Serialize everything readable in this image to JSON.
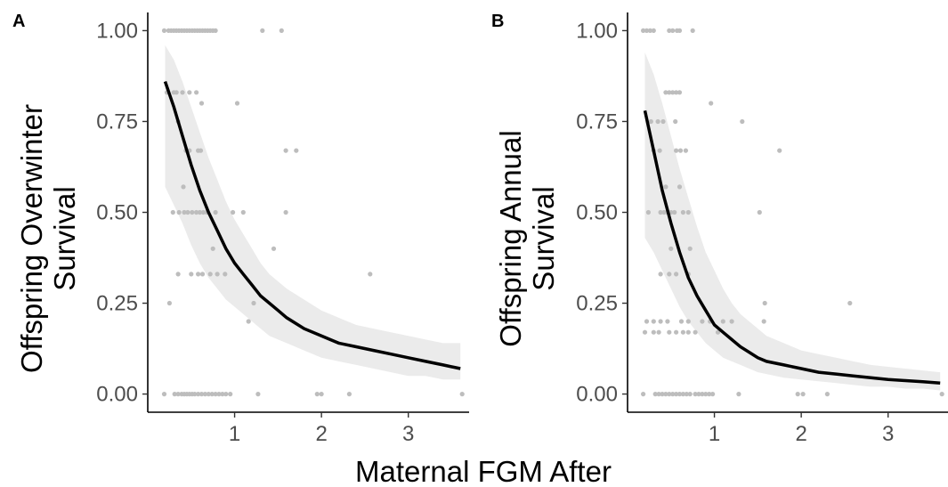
{
  "chart_data": [
    {
      "panel_label": "A",
      "type": "scatter",
      "xlabel": "Maternal FGM After",
      "ylabel_lines": [
        "Offspring Overwinter",
        "Survival"
      ],
      "xlim": [
        0,
        3.7
      ],
      "ylim": [
        -0.05,
        1.05
      ],
      "x_ticks": [
        "1",
        "2",
        "3"
      ],
      "y_ticks": [
        "0.00",
        "0.25",
        "0.50",
        "0.75",
        "1.00"
      ],
      "grid": false,
      "points": {
        "x": [
          0.19,
          0.24,
          0.27,
          0.3,
          0.33,
          0.36,
          0.39,
          0.42,
          0.45,
          0.48,
          0.51,
          0.54,
          0.57,
          0.6,
          0.63,
          0.66,
          0.69,
          0.72,
          0.75,
          0.78,
          1.32,
          1.54,
          0.19,
          0.31,
          0.35,
          0.39,
          0.42,
          0.45,
          0.48,
          0.51,
          0.54,
          0.58,
          0.62,
          0.66,
          0.7,
          0.74,
          0.78,
          0.82,
          0.86,
          0.9,
          0.95,
          1.27,
          1.95,
          2.0,
          2.32,
          3.62,
          0.22,
          0.3,
          0.33,
          0.4,
          0.48,
          0.56,
          0.62,
          1.03,
          0.35,
          0.44,
          0.48,
          0.58,
          0.61,
          1.59,
          1.71,
          0.29,
          0.36,
          0.42,
          0.46,
          0.51,
          0.56,
          0.6,
          0.64,
          0.68,
          0.78,
          0.98,
          1.1,
          1.59,
          0.25,
          0.35,
          0.5,
          0.58,
          0.63,
          0.72,
          0.8,
          0.89,
          1.16,
          1.22,
          0.41,
          0.75,
          1.45,
          2.56
        ],
        "y": [
          1,
          1,
          1,
          1,
          1,
          1,
          1,
          1,
          1,
          1,
          1,
          1,
          1,
          1,
          1,
          1,
          1,
          1,
          1,
          1,
          1,
          1,
          0,
          0,
          0,
          0,
          0,
          0,
          0,
          0,
          0,
          0,
          0,
          0,
          0,
          0,
          0,
          0,
          0,
          0,
          0,
          0,
          0,
          0,
          0,
          0,
          0.83,
          0.83,
          0.83,
          0.83,
          0.83,
          0.83,
          0.8,
          0.8,
          0.75,
          0.67,
          0.67,
          0.67,
          0.67,
          0.67,
          0.67,
          0.5,
          0.5,
          0.5,
          0.5,
          0.5,
          0.5,
          0.5,
          0.5,
          0.5,
          0.5,
          0.5,
          0.5,
          0.5,
          0.25,
          0.33,
          0.33,
          0.33,
          0.33,
          0.33,
          0.33,
          0.33,
          0.2,
          0.25,
          0.57,
          0.4,
          0.4,
          0.33
        ]
      },
      "fit": {
        "x": [
          0.2,
          0.3,
          0.4,
          0.5,
          0.6,
          0.7,
          0.8,
          0.9,
          1.0,
          1.1,
          1.2,
          1.3,
          1.4,
          1.5,
          1.6,
          1.8,
          2.0,
          2.2,
          2.4,
          2.6,
          2.8,
          3.0,
          3.2,
          3.4,
          3.6
        ],
        "y": [
          0.86,
          0.79,
          0.71,
          0.63,
          0.56,
          0.5,
          0.45,
          0.4,
          0.36,
          0.33,
          0.3,
          0.27,
          0.25,
          0.23,
          0.21,
          0.18,
          0.16,
          0.14,
          0.13,
          0.12,
          0.11,
          0.1,
          0.09,
          0.08,
          0.07
        ],
        "lower": [
          0.57,
          0.52,
          0.47,
          0.41,
          0.36,
          0.32,
          0.29,
          0.26,
          0.24,
          0.22,
          0.2,
          0.18,
          0.16,
          0.15,
          0.14,
          0.12,
          0.1,
          0.09,
          0.08,
          0.07,
          0.06,
          0.05,
          0.05,
          0.04,
          0.04
        ],
        "upper": [
          0.96,
          0.92,
          0.86,
          0.79,
          0.72,
          0.65,
          0.59,
          0.53,
          0.48,
          0.44,
          0.4,
          0.36,
          0.33,
          0.31,
          0.29,
          0.26,
          0.23,
          0.21,
          0.19,
          0.18,
          0.17,
          0.16,
          0.15,
          0.14,
          0.14
        ]
      }
    },
    {
      "panel_label": "B",
      "type": "scatter",
      "xlabel": "Maternal FGM After",
      "ylabel_lines": [
        "Offspring Annual",
        "Survival"
      ],
      "xlim": [
        0,
        3.7
      ],
      "ylim": [
        -0.05,
        1.05
      ],
      "x_ticks": [
        "1",
        "2",
        "3"
      ],
      "y_ticks": [
        "0.00",
        "0.25",
        "0.50",
        "0.75",
        "1.00"
      ],
      "grid": false,
      "points": {
        "x": [
          0.18,
          0.22,
          0.26,
          0.3,
          0.48,
          0.52,
          0.57,
          0.6,
          0.75,
          0.18,
          0.32,
          0.36,
          0.4,
          0.44,
          0.48,
          0.52,
          0.56,
          0.6,
          0.64,
          0.68,
          0.72,
          0.78,
          0.82,
          0.86,
          0.9,
          0.94,
          0.98,
          1.28,
          1.96,
          2.02,
          2.3,
          3.62,
          0.44,
          0.48,
          0.52,
          0.56,
          0.6,
          0.96,
          0.27,
          0.35,
          0.41,
          0.55,
          1.32,
          0.3,
          0.37,
          0.56,
          0.61,
          0.67,
          1.75,
          0.24,
          0.38,
          0.42,
          0.46,
          0.5,
          0.54,
          0.64,
          0.7,
          1.52,
          0.38,
          0.48,
          0.56,
          0.7,
          1.58,
          2.56,
          0.22,
          0.3,
          0.38,
          0.46,
          0.62,
          0.7,
          0.86,
          0.95,
          1.1,
          1.2,
          1.57,
          0.2,
          0.3,
          0.36,
          0.48,
          0.56,
          0.64,
          0.7,
          0.78,
          0.44,
          0.6,
          0.5,
          0.72,
          1.04
        ],
        "y": [
          1,
          1,
          1,
          1,
          1,
          1,
          1,
          1,
          1,
          0,
          0,
          0,
          0,
          0,
          0,
          0,
          0,
          0,
          0,
          0,
          0,
          0,
          0,
          0,
          0,
          0,
          0,
          0,
          0,
          0,
          0,
          0,
          0.83,
          0.83,
          0.83,
          0.83,
          0.83,
          0.8,
          0.75,
          0.75,
          0.75,
          0.75,
          0.75,
          0.67,
          0.67,
          0.67,
          0.67,
          0.67,
          0.67,
          0.5,
          0.5,
          0.5,
          0.5,
          0.5,
          0.5,
          0.5,
          0.5,
          0.5,
          0.33,
          0.33,
          0.33,
          0.33,
          0.25,
          0.25,
          0.2,
          0.2,
          0.2,
          0.2,
          0.2,
          0.2,
          0.2,
          0.2,
          0.2,
          0.2,
          0.2,
          0.17,
          0.17,
          0.17,
          0.17,
          0.17,
          0.17,
          0.17,
          0.17,
          0.57,
          0.57,
          0.4,
          0.4,
          0.17
        ]
      },
      "fit": {
        "x": [
          0.2,
          0.3,
          0.4,
          0.5,
          0.6,
          0.7,
          0.8,
          0.9,
          1.0,
          1.1,
          1.2,
          1.3,
          1.4,
          1.5,
          1.6,
          1.8,
          2.0,
          2.2,
          2.4,
          2.6,
          2.8,
          3.0,
          3.2,
          3.4,
          3.6
        ],
        "y": [
          0.78,
          0.67,
          0.56,
          0.47,
          0.39,
          0.32,
          0.27,
          0.23,
          0.19,
          0.17,
          0.15,
          0.13,
          0.115,
          0.1,
          0.09,
          0.08,
          0.07,
          0.06,
          0.055,
          0.05,
          0.045,
          0.04,
          0.037,
          0.034,
          0.03
        ],
        "lower": [
          0.43,
          0.39,
          0.34,
          0.29,
          0.24,
          0.2,
          0.17,
          0.14,
          0.12,
          0.1,
          0.09,
          0.08,
          0.07,
          0.06,
          0.055,
          0.045,
          0.04,
          0.035,
          0.03,
          0.025,
          0.02,
          0.02,
          0.015,
          0.015,
          0.01
        ],
        "upper": [
          0.94,
          0.88,
          0.8,
          0.71,
          0.62,
          0.54,
          0.46,
          0.39,
          0.34,
          0.29,
          0.25,
          0.22,
          0.2,
          0.18,
          0.16,
          0.14,
          0.12,
          0.11,
          0.1,
          0.09,
          0.08,
          0.075,
          0.07,
          0.065,
          0.06
        ]
      }
    }
  ]
}
